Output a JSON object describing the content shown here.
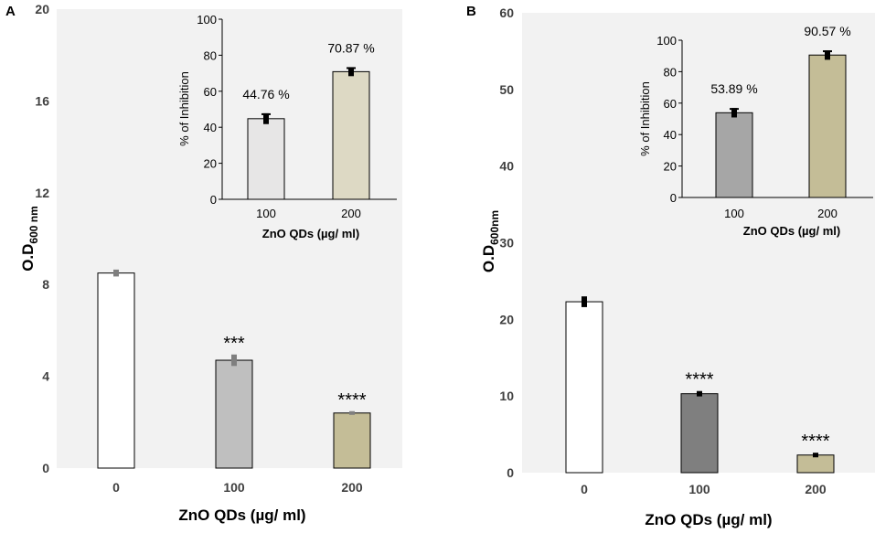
{
  "chart_data": [
    {
      "panel": "A",
      "type": "bar",
      "xlabel": "ZnO QDs (µg/ ml)",
      "ylabel_main": "O.D",
      "ylabel_sub": "600 nm",
      "ylim": [
        0,
        20
      ],
      "yticks": [
        "0",
        "4",
        "8",
        "12",
        "16",
        "20"
      ],
      "categories": [
        "0",
        "100",
        "200"
      ],
      "values": [
        8.5,
        4.7,
        2.4
      ],
      "errors": [
        0.15,
        0.25,
        0.08
      ],
      "colors": [
        "#ffffff",
        "#bfbfbf",
        "#c4bd97"
      ],
      "errbar_color": "#7f7f7f",
      "significance": [
        "",
        "***",
        "****"
      ],
      "inset": {
        "type": "bar",
        "xlabel": "ZnO QDs (µg/ ml)",
        "ylabel": "% of Inhibition",
        "ylim": [
          0,
          100
        ],
        "yticks": [
          "0",
          "20",
          "40",
          "60",
          "80",
          "100"
        ],
        "categories": [
          "100",
          "200"
        ],
        "values": [
          44.76,
          70.87
        ],
        "value_labels": [
          "44.76 %",
          "70.87 %"
        ],
        "errors": [
          3,
          2.5
        ],
        "colors": [
          "#e7e6e6",
          "#ddd9c4"
        ]
      }
    },
    {
      "panel": "B",
      "type": "bar",
      "xlabel": "ZnO QDs (µg/ ml)",
      "ylabel_main": "O.D",
      "ylabel_sub": "600nm",
      "ylim": [
        0,
        60
      ],
      "yticks": [
        "0",
        "10",
        "20",
        "30",
        "40",
        "50",
        "60"
      ],
      "categories": [
        "0",
        "100",
        "200"
      ],
      "values": [
        22.3,
        10.3,
        2.3
      ],
      "errors": [
        0.7,
        0.35,
        0.3
      ],
      "colors": [
        "#ffffff",
        "#7f7f7f",
        "#c4bd97"
      ],
      "errbar_color": "#000000",
      "significance": [
        "",
        "****",
        "****"
      ],
      "inset": {
        "type": "bar",
        "xlabel": "ZnO QDs (µg/ ml)",
        "ylabel": "% of Inhibition",
        "ylim": [
          0,
          100
        ],
        "yticks": [
          "0",
          "20",
          "40",
          "60",
          "80",
          "100"
        ],
        "categories": [
          "100",
          "200"
        ],
        "values": [
          53.89,
          90.57
        ],
        "value_labels": [
          "53.89 %",
          "90.57 %"
        ],
        "errors": [
          3,
          3
        ],
        "colors": [
          "#a6a6a6",
          "#c4bd97"
        ]
      }
    }
  ]
}
